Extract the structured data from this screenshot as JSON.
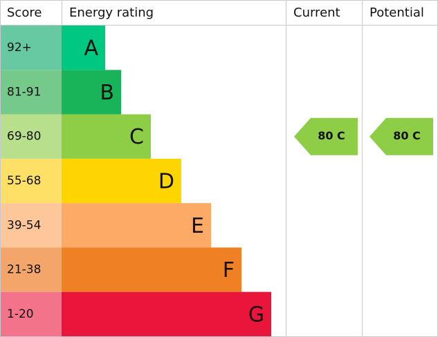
{
  "header": {
    "score": "Score",
    "rating": "Energy rating",
    "current": "Current",
    "potential": "Potential"
  },
  "bands": [
    {
      "score": "92+",
      "letter": "A"
    },
    {
      "score": "81-91",
      "letter": "B"
    },
    {
      "score": "69-80",
      "letter": "C"
    },
    {
      "score": "55-68",
      "letter": "D"
    },
    {
      "score": "39-54",
      "letter": "E"
    },
    {
      "score": "21-38",
      "letter": "F"
    },
    {
      "score": "1-20",
      "letter": "G"
    }
  ],
  "current": "80 C",
  "potential": "80 C"
}
